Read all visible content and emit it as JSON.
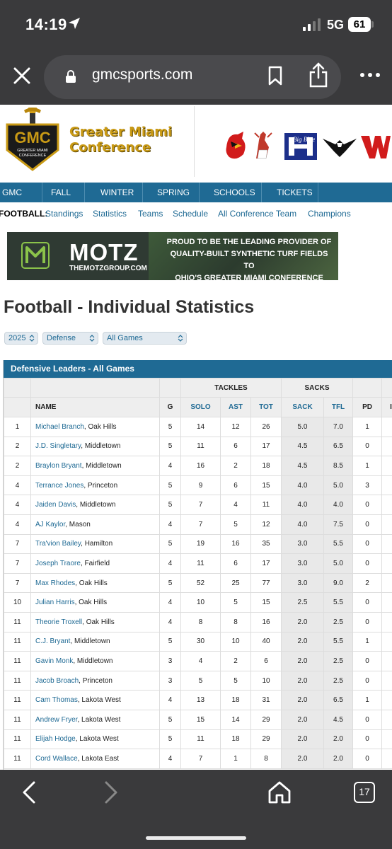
{
  "status": {
    "time": "14:19",
    "network": "5G",
    "battery": "61"
  },
  "browser": {
    "url": "gmcsports.com",
    "tab_count": "17"
  },
  "header": {
    "logo_text": "GMC",
    "logo_sub": "GREATER MIAMI CONFERENCE",
    "conf_line1": "Greater Miami",
    "conf_line2": "Conference"
  },
  "nav": [
    "GMC",
    "FALL",
    "WINTER",
    "SPRING",
    "SCHOOLS",
    "TICKETS"
  ],
  "subnav": {
    "lead": "FOOTBALL:",
    "links": [
      "Standings",
      "Statistics",
      "Teams",
      "Schedule",
      "All Conference Team",
      "Champions"
    ]
  },
  "banner": {
    "brand": "MOTZ",
    "site": "THEMOTZGROUP.COM",
    "line1": "PROUD TO BE THE LEADING PROVIDER OF",
    "line2": "QUALITY-BUILT SYNTHETIC TURF FIELDS TO",
    "line3": "OHIO'S GREATER MIAMI CONFERENCE"
  },
  "page_title": "Football - Individual Statistics",
  "filters": {
    "year": "2025",
    "category": "Defense",
    "games": "All Games"
  },
  "table": {
    "title": "Defensive Leaders - All Games",
    "groups": {
      "tackles": "TACKLES",
      "sacks": "SACKS"
    },
    "columns": [
      "NAME",
      "G",
      "SOLO",
      "AST",
      "TOT",
      "SACK",
      "TFL",
      "PD",
      "I"
    ],
    "rows": [
      {
        "rank": "1",
        "name": "Michael Branch",
        "school": ", Oak Hills",
        "g": "5",
        "solo": "14",
        "ast": "12",
        "tot": "26",
        "sack": "5.0",
        "tfl": "7.0",
        "pd": "1"
      },
      {
        "rank": "2",
        "name": "J.D. Singletary",
        "school": ", Middletown",
        "g": "5",
        "solo": "11",
        "ast": "6",
        "tot": "17",
        "sack": "4.5",
        "tfl": "6.5",
        "pd": "0"
      },
      {
        "rank": "2",
        "name": "Braylon Bryant",
        "school": ", Middletown",
        "g": "4",
        "solo": "16",
        "ast": "2",
        "tot": "18",
        "sack": "4.5",
        "tfl": "8.5",
        "pd": "1"
      },
      {
        "rank": "4",
        "name": "Terrance Jones",
        "school": ", Princeton",
        "g": "5",
        "solo": "9",
        "ast": "6",
        "tot": "15",
        "sack": "4.0",
        "tfl": "5.0",
        "pd": "3"
      },
      {
        "rank": "4",
        "name": "Jaiden Davis",
        "school": ", Middletown",
        "g": "5",
        "solo": "7",
        "ast": "4",
        "tot": "11",
        "sack": "4.0",
        "tfl": "4.0",
        "pd": "0"
      },
      {
        "rank": "4",
        "name": "AJ Kaylor",
        "school": ", Mason",
        "g": "4",
        "solo": "7",
        "ast": "5",
        "tot": "12",
        "sack": "4.0",
        "tfl": "7.5",
        "pd": "0"
      },
      {
        "rank": "7",
        "name": "Tra'vion Bailey",
        "school": ", Hamilton",
        "g": "5",
        "solo": "19",
        "ast": "16",
        "tot": "35",
        "sack": "3.0",
        "tfl": "5.5",
        "pd": "0"
      },
      {
        "rank": "7",
        "name": "Joseph Traore",
        "school": ", Fairfield",
        "g": "4",
        "solo": "11",
        "ast": "6",
        "tot": "17",
        "sack": "3.0",
        "tfl": "5.0",
        "pd": "0"
      },
      {
        "rank": "7",
        "name": "Max Rhodes",
        "school": ", Oak Hills",
        "g": "5",
        "solo": "52",
        "ast": "25",
        "tot": "77",
        "sack": "3.0",
        "tfl": "9.0",
        "pd": "2"
      },
      {
        "rank": "10",
        "name": "Julian Harris",
        "school": ", Oak Hills",
        "g": "4",
        "solo": "10",
        "ast": "5",
        "tot": "15",
        "sack": "2.5",
        "tfl": "5.5",
        "pd": "0"
      },
      {
        "rank": "11",
        "name": "Theorie Troxell",
        "school": ", Oak Hills",
        "g": "4",
        "solo": "8",
        "ast": "8",
        "tot": "16",
        "sack": "2.0",
        "tfl": "2.5",
        "pd": "0"
      },
      {
        "rank": "11",
        "name": "C.J. Bryant",
        "school": ", Middletown",
        "g": "5",
        "solo": "30",
        "ast": "10",
        "tot": "40",
        "sack": "2.0",
        "tfl": "5.5",
        "pd": "1"
      },
      {
        "rank": "11",
        "name": "Gavin Monk",
        "school": ", Middletown",
        "g": "3",
        "solo": "4",
        "ast": "2",
        "tot": "6",
        "sack": "2.0",
        "tfl": "2.5",
        "pd": "0"
      },
      {
        "rank": "11",
        "name": "Jacob Broach",
        "school": ", Princeton",
        "g": "3",
        "solo": "5",
        "ast": "5",
        "tot": "10",
        "sack": "2.0",
        "tfl": "2.5",
        "pd": "0"
      },
      {
        "rank": "11",
        "name": "Cam Thomas",
        "school": ", Lakota West",
        "g": "4",
        "solo": "13",
        "ast": "18",
        "tot": "31",
        "sack": "2.0",
        "tfl": "6.5",
        "pd": "1"
      },
      {
        "rank": "11",
        "name": "Andrew Fryer",
        "school": ", Lakota West",
        "g": "5",
        "solo": "15",
        "ast": "14",
        "tot": "29",
        "sack": "2.0",
        "tfl": "4.5",
        "pd": "0"
      },
      {
        "rank": "11",
        "name": "Elijah Hodge",
        "school": ", Lakota West",
        "g": "5",
        "solo": "11",
        "ast": "18",
        "tot": "29",
        "sack": "2.0",
        "tfl": "2.0",
        "pd": "0"
      },
      {
        "rank": "11",
        "name": "Cord Wallace",
        "school": ", Lakota East",
        "g": "4",
        "solo": "7",
        "ast": "1",
        "tot": "8",
        "sack": "2.0",
        "tfl": "2.0",
        "pd": "0"
      }
    ]
  },
  "colors": {
    "brand_blue": "#1f6a94",
    "chrome": "#3a3a3c",
    "gold": "#c99a15"
  },
  "icons": [
    "location-arrow-icon",
    "signal-icon",
    "close-icon",
    "lock-icon",
    "bookmark-icon",
    "share-icon",
    "more-icon",
    "back-icon",
    "forward-icon",
    "home-icon",
    "tabs-icon"
  ]
}
